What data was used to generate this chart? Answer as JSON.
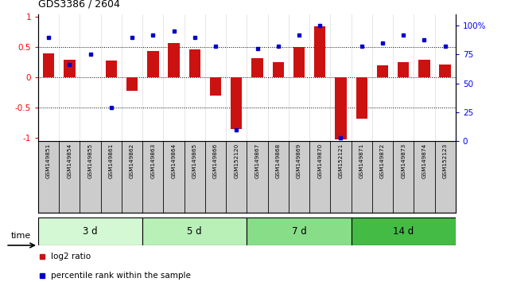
{
  "title": "GDS3386 / 2604",
  "samples": [
    "GSM149851",
    "GSM149854",
    "GSM149855",
    "GSM149861",
    "GSM149862",
    "GSM149863",
    "GSM149864",
    "GSM149865",
    "GSM149866",
    "GSM152120",
    "GSM149867",
    "GSM149868",
    "GSM149869",
    "GSM149870",
    "GSM152121",
    "GSM149871",
    "GSM149872",
    "GSM149873",
    "GSM149874",
    "GSM152123"
  ],
  "log2_ratio": [
    0.4,
    0.3,
    0.01,
    0.28,
    -0.22,
    0.44,
    0.57,
    0.47,
    -0.3,
    -0.85,
    0.32,
    0.25,
    0.5,
    0.85,
    -1.02,
    -0.68,
    0.2,
    0.25,
    0.3,
    0.22
  ],
  "percentile": [
    90,
    66,
    75,
    29,
    90,
    92,
    95,
    90,
    82,
    10,
    80,
    82,
    92,
    100,
    3,
    82,
    85,
    92,
    88,
    82
  ],
  "groups": [
    {
      "label": "3 d",
      "start": 0,
      "end": 5,
      "color": "#d4f7d4"
    },
    {
      "label": "5 d",
      "start": 5,
      "end": 10,
      "color": "#b8f0b8"
    },
    {
      "label": "7 d",
      "start": 10,
      "end": 15,
      "color": "#88dd88"
    },
    {
      "label": "14 d",
      "start": 15,
      "end": 20,
      "color": "#44bb44"
    }
  ],
  "bar_color": "#cc1111",
  "dot_color": "#0000cc",
  "ylim": [
    -1.05,
    1.05
  ],
  "yticks_left": [
    -1,
    -0.5,
    0,
    0.5,
    1
  ],
  "yticks_right": [
    0,
    25,
    50,
    75,
    100
  ],
  "hlines": [
    -0.5,
    0.0,
    0.5
  ],
  "background_color": "#ffffff"
}
